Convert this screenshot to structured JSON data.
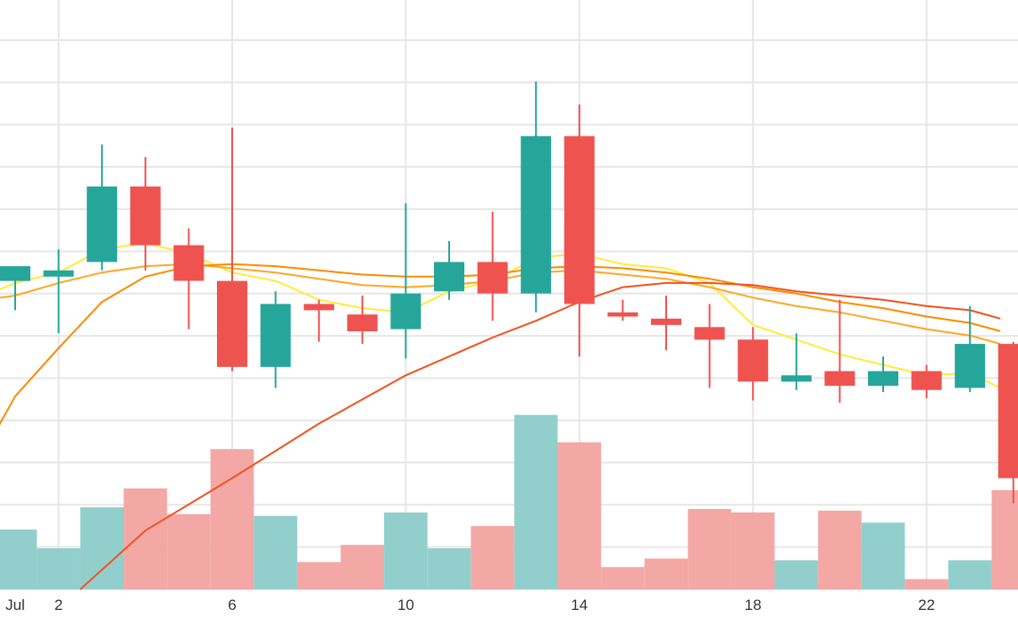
{
  "chart_data": {
    "type": "candlestick",
    "colors": {
      "up": "#26a69a",
      "down": "#ef5350",
      "up_volume": "#92cfcc",
      "down_volume": "#f4a8a6",
      "grid": "#e6e6e6",
      "ma_fast": "#ffeb3b",
      "ma_mid": "#ffa726",
      "ma_slow": "#fb8c00",
      "ma_slowest": "#f4511e"
    },
    "x_tick_labels": [
      {
        "day": 1,
        "label": "Jul"
      },
      {
        "day": 2,
        "label": "2"
      },
      {
        "day": 6,
        "label": "6"
      },
      {
        "day": 10,
        "label": "10"
      },
      {
        "day": 14,
        "label": "14"
      },
      {
        "day": 18,
        "label": "18"
      },
      {
        "day": 22,
        "label": "22"
      }
    ],
    "price_range": [
      0,
      14
    ],
    "volume_range": [
      0,
      10
    ],
    "candles": [
      {
        "day": 1,
        "open": 7.35,
        "high": 7.65,
        "low": 6.65,
        "close": 7.7
      },
      {
        "day": 2,
        "open": 7.45,
        "high": 8.1,
        "low": 6.1,
        "close": 7.6
      },
      {
        "day": 3,
        "open": 7.8,
        "high": 10.6,
        "low": 7.6,
        "close": 9.6
      },
      {
        "day": 4,
        "open": 9.6,
        "high": 10.3,
        "low": 7.6,
        "close": 8.2
      },
      {
        "day": 5,
        "open": 8.2,
        "high": 8.6,
        "low": 6.2,
        "close": 7.35
      },
      {
        "day": 6,
        "open": 7.35,
        "high": 11.0,
        "low": 5.2,
        "close": 5.3
      },
      {
        "day": 7,
        "open": 5.3,
        "high": 7.1,
        "low": 4.8,
        "close": 6.8
      },
      {
        "day": 8,
        "open": 6.8,
        "high": 6.9,
        "low": 5.9,
        "close": 6.65
      },
      {
        "day": 9,
        "open": 6.55,
        "high": 7.0,
        "low": 5.85,
        "close": 6.15
      },
      {
        "day": 10,
        "open": 6.2,
        "high": 9.2,
        "low": 5.5,
        "close": 7.05
      },
      {
        "day": 11,
        "open": 7.1,
        "high": 8.3,
        "low": 6.9,
        "close": 7.8
      },
      {
        "day": 12,
        "open": 7.8,
        "high": 9.0,
        "low": 6.4,
        "close": 7.05
      },
      {
        "day": 13,
        "open": 7.05,
        "high": 12.1,
        "low": 6.6,
        "close": 10.8
      },
      {
        "day": 14,
        "open": 10.8,
        "high": 11.55,
        "low": 5.55,
        "close": 6.8
      },
      {
        "day": 15,
        "open": 6.6,
        "high": 6.9,
        "low": 6.4,
        "close": 6.5
      },
      {
        "day": 16,
        "open": 6.45,
        "high": 7.0,
        "low": 5.7,
        "close": 6.3
      },
      {
        "day": 17,
        "open": 6.25,
        "high": 6.8,
        "low": 4.8,
        "close": 5.95
      },
      {
        "day": 18,
        "open": 5.95,
        "high": 6.25,
        "low": 4.5,
        "close": 4.95
      },
      {
        "day": 19,
        "open": 4.95,
        "high": 6.1,
        "low": 4.75,
        "close": 5.1
      },
      {
        "day": 20,
        "open": 5.2,
        "high": 6.9,
        "low": 4.45,
        "close": 4.85
      },
      {
        "day": 21,
        "open": 4.85,
        "high": 5.55,
        "low": 4.7,
        "close": 5.2
      },
      {
        "day": 22,
        "open": 5.2,
        "high": 5.35,
        "low": 4.55,
        "close": 4.75
      },
      {
        "day": 23,
        "open": 4.8,
        "high": 6.75,
        "low": 4.7,
        "close": 5.85
      },
      {
        "day": 24,
        "open": 5.85,
        "high": 5.9,
        "low": 2.05,
        "close": 2.65
      }
    ],
    "volumes": [
      {
        "day": 1,
        "value": 1.75,
        "dir": "up"
      },
      {
        "day": 2,
        "value": 1.2,
        "dir": "up"
      },
      {
        "day": 3,
        "value": 2.4,
        "dir": "up"
      },
      {
        "day": 4,
        "value": 2.95,
        "dir": "down"
      },
      {
        "day": 5,
        "value": 2.2,
        "dir": "down"
      },
      {
        "day": 6,
        "value": 4.1,
        "dir": "down"
      },
      {
        "day": 7,
        "value": 2.15,
        "dir": "up"
      },
      {
        "day": 8,
        "value": 0.8,
        "dir": "down"
      },
      {
        "day": 9,
        "value": 1.3,
        "dir": "down"
      },
      {
        "day": 10,
        "value": 2.25,
        "dir": "up"
      },
      {
        "day": 11,
        "value": 1.2,
        "dir": "up"
      },
      {
        "day": 12,
        "value": 1.85,
        "dir": "down"
      },
      {
        "day": 13,
        "value": 5.1,
        "dir": "up"
      },
      {
        "day": 14,
        "value": 4.3,
        "dir": "down"
      },
      {
        "day": 15,
        "value": 0.65,
        "dir": "down"
      },
      {
        "day": 16,
        "value": 0.9,
        "dir": "down"
      },
      {
        "day": 17,
        "value": 2.35,
        "dir": "down"
      },
      {
        "day": 18,
        "value": 2.25,
        "dir": "down"
      },
      {
        "day": 19,
        "value": 0.85,
        "dir": "up"
      },
      {
        "day": 20,
        "value": 2.3,
        "dir": "down"
      },
      {
        "day": 21,
        "value": 1.95,
        "dir": "up"
      },
      {
        "day": 22,
        "value": 0.3,
        "dir": "down"
      },
      {
        "day": 23,
        "value": 0.85,
        "dir": "up"
      },
      {
        "day": 24,
        "value": 2.9,
        "dir": "down"
      }
    ],
    "moving_averages": [
      {
        "key": "ma_fast",
        "points": [
          [
            0.3,
            7.0
          ],
          [
            1,
            7.3
          ],
          [
            2,
            7.55
          ],
          [
            3,
            8.1
          ],
          [
            4,
            8.25
          ],
          [
            5,
            8.0
          ],
          [
            6,
            7.55
          ],
          [
            7,
            7.35
          ],
          [
            8,
            6.9
          ],
          [
            9,
            6.7
          ],
          [
            10,
            6.6
          ],
          [
            11,
            7.1
          ],
          [
            12,
            7.35
          ],
          [
            13,
            7.9
          ],
          [
            14,
            8.0
          ],
          [
            15,
            7.75
          ],
          [
            16,
            7.65
          ],
          [
            17,
            7.3
          ],
          [
            18,
            6.3
          ],
          [
            19,
            5.95
          ],
          [
            20,
            5.6
          ],
          [
            21,
            5.35
          ],
          [
            22,
            5.1
          ],
          [
            23,
            5.15
          ],
          [
            23.7,
            4.8
          ]
        ]
      },
      {
        "key": "ma_mid",
        "points": [
          [
            0.3,
            6.9
          ],
          [
            1,
            7.0
          ],
          [
            2,
            7.3
          ],
          [
            3,
            7.55
          ],
          [
            4,
            7.7
          ],
          [
            5,
            7.75
          ],
          [
            6,
            7.65
          ],
          [
            7,
            7.55
          ],
          [
            8,
            7.4
          ],
          [
            9,
            7.25
          ],
          [
            10,
            7.2
          ],
          [
            11,
            7.25
          ],
          [
            12,
            7.35
          ],
          [
            13,
            7.55
          ],
          [
            14,
            7.6
          ],
          [
            15,
            7.5
          ],
          [
            16,
            7.4
          ],
          [
            17,
            7.2
          ],
          [
            18,
            6.95
          ],
          [
            19,
            6.75
          ],
          [
            20,
            6.6
          ],
          [
            21,
            6.4
          ],
          [
            22,
            6.2
          ],
          [
            23,
            6.05
          ],
          [
            23.7,
            5.85
          ]
        ]
      },
      {
        "key": "ma_slow",
        "points": [
          [
            0.3,
            3.3
          ],
          [
            1,
            4.6
          ],
          [
            2,
            5.75
          ],
          [
            3,
            6.85
          ],
          [
            4,
            7.45
          ],
          [
            5,
            7.7
          ],
          [
            6,
            7.75
          ],
          [
            7,
            7.7
          ],
          [
            8,
            7.6
          ],
          [
            9,
            7.5
          ],
          [
            10,
            7.45
          ],
          [
            11,
            7.45
          ],
          [
            12,
            7.5
          ],
          [
            13,
            7.65
          ],
          [
            14,
            7.7
          ],
          [
            15,
            7.65
          ],
          [
            16,
            7.55
          ],
          [
            17,
            7.4
          ],
          [
            18,
            7.2
          ],
          [
            19,
            7.05
          ],
          [
            20,
            6.85
          ],
          [
            21,
            6.7
          ],
          [
            22,
            6.5
          ],
          [
            23,
            6.35
          ],
          [
            23.7,
            6.15
          ]
        ]
      },
      {
        "key": "ma_slowest",
        "points": [
          [
            2.5,
            0.0
          ],
          [
            4,
            1.4
          ],
          [
            6,
            2.65
          ],
          [
            8,
            3.95
          ],
          [
            10,
            5.1
          ],
          [
            12,
            6.0
          ],
          [
            13,
            6.4
          ],
          [
            14,
            6.85
          ],
          [
            15,
            7.2
          ],
          [
            16,
            7.3
          ],
          [
            17,
            7.3
          ],
          [
            18,
            7.25
          ],
          [
            19,
            7.1
          ],
          [
            20,
            7.0
          ],
          [
            21,
            6.9
          ],
          [
            22,
            6.75
          ],
          [
            23,
            6.65
          ],
          [
            23.7,
            6.45
          ]
        ]
      }
    ],
    "grid": true
  }
}
